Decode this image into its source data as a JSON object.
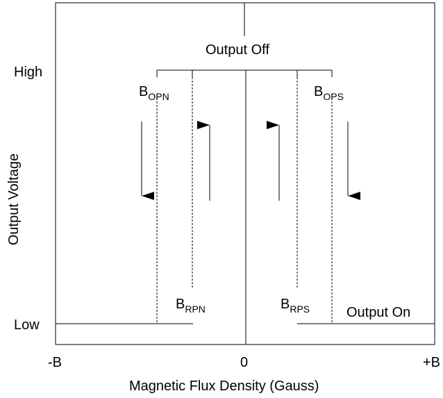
{
  "y_axis": {
    "label": "Output Voltage",
    "ticks": [
      "High",
      "Low"
    ]
  },
  "x_axis": {
    "label": "Magnetic Flux Density (Gauss)",
    "ticks": [
      "-B",
      "0",
      "+B"
    ]
  },
  "states": {
    "off": "Output Off",
    "on": "Output On"
  },
  "thresholds": {
    "opn": {
      "main": "B",
      "sub": "OPN"
    },
    "rpn": {
      "main": "B",
      "sub": "RPN"
    },
    "rps": {
      "main": "B",
      "sub": "RPS"
    },
    "ops": {
      "main": "B",
      "sub": "OPS"
    }
  }
}
